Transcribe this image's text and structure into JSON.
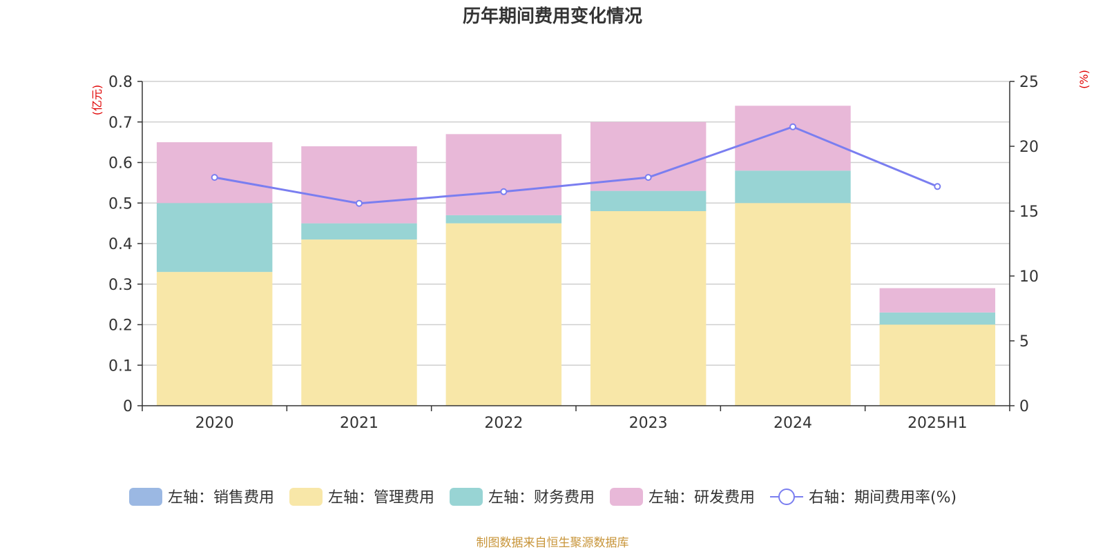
{
  "chart_data": {
    "type": "bar",
    "title": "历年期间费用变化情况",
    "categories": [
      "2020",
      "2021",
      "2022",
      "2023",
      "2024",
      "2025H1"
    ],
    "left_axis": {
      "unit_label": "(亿元)",
      "ylim": [
        0,
        0.8
      ],
      "ticks": [
        "0",
        "0.1",
        "0.2",
        "0.3",
        "0.4",
        "0.5",
        "0.6",
        "0.7",
        "0.8"
      ]
    },
    "right_axis": {
      "unit_label": "(%)",
      "ylim": [
        0,
        25
      ],
      "ticks": [
        "0",
        "5",
        "10",
        "15",
        "20",
        "25"
      ]
    },
    "stacked": true,
    "series": [
      {
        "name": "左轴：销售费用",
        "type": "bar",
        "axis": "left",
        "color": "#9bb8e3",
        "values": [
          0,
          0,
          0,
          0,
          0,
          0
        ]
      },
      {
        "name": "左轴：管理费用",
        "type": "bar",
        "axis": "left",
        "color": "#f8e7a8",
        "values": [
          0.33,
          0.41,
          0.45,
          0.48,
          0.5,
          0.2
        ]
      },
      {
        "name": "左轴：财务费用",
        "type": "bar",
        "axis": "left",
        "color": "#98d4d4",
        "values": [
          0.17,
          0.04,
          0.02,
          0.05,
          0.08,
          0.03
        ]
      },
      {
        "name": "左轴：研发费用",
        "type": "bar",
        "axis": "left",
        "color": "#e8b8d8",
        "values": [
          0.15,
          0.19,
          0.2,
          0.17,
          0.16,
          0.06
        ]
      },
      {
        "name": "右轴：期间费用率(%)",
        "type": "line",
        "axis": "right",
        "color": "#7a7ef0",
        "values": [
          17.6,
          15.6,
          16.5,
          17.6,
          21.5,
          16.9
        ]
      }
    ],
    "grid": true,
    "legend_position": "bottom"
  },
  "footer": {
    "source": "制图数据来自恒生聚源数据库"
  }
}
